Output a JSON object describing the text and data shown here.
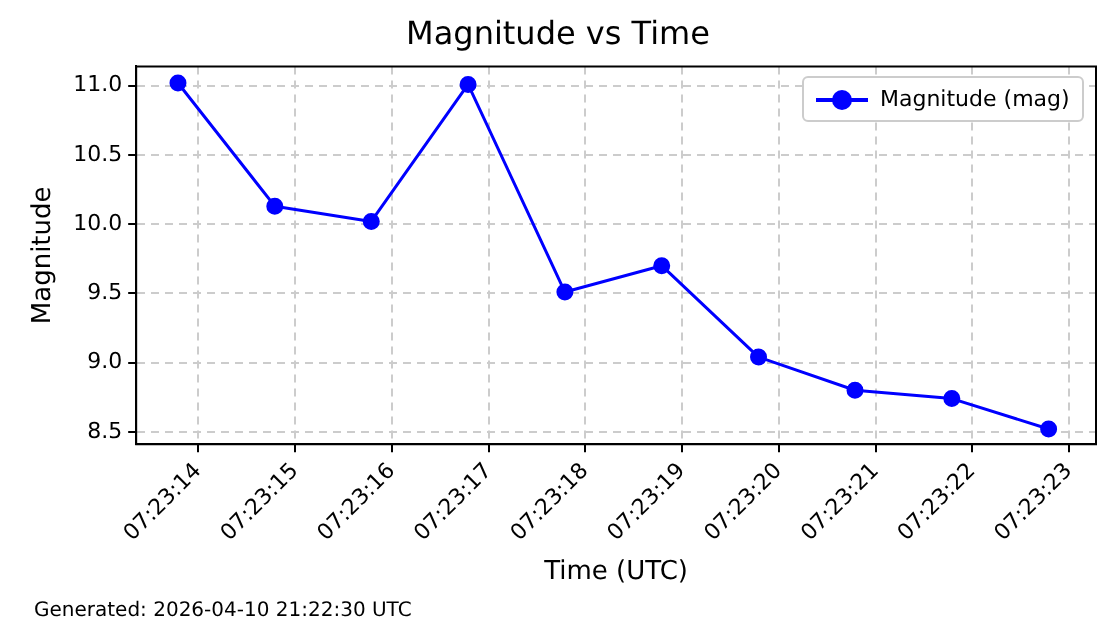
{
  "chart_data": {
    "type": "line",
    "title": "Magnitude vs Time",
    "xlabel": "Time (UTC)",
    "ylabel": "Magnitude",
    "x": [
      7.387164,
      7.387442,
      7.387719,
      7.387997,
      7.388275,
      7.388553,
      7.388831,
      7.389108,
      7.389386,
      7.389664
    ],
    "series": [
      {
        "name": "Magnitude (mag)",
        "color": "#0000ff",
        "values": [
          11.02,
          10.13,
          10.02,
          11.01,
          9.51,
          9.7,
          9.04,
          8.8,
          8.74,
          8.52
        ]
      }
    ],
    "xlim": [
      7.387044,
      7.3898
    ],
    "xticks": [
      {
        "value": 7.387222,
        "label": "07:23:14"
      },
      {
        "value": 7.3875,
        "label": "07:23:15"
      },
      {
        "value": 7.387778,
        "label": "07:23:16"
      },
      {
        "value": 7.388056,
        "label": "07:23:17"
      },
      {
        "value": 7.388333,
        "label": "07:23:18"
      },
      {
        "value": 7.388611,
        "label": "07:23:19"
      },
      {
        "value": 7.388889,
        "label": "07:23:20"
      },
      {
        "value": 7.389167,
        "label": "07:23:21"
      },
      {
        "value": 7.389444,
        "label": "07:23:22"
      },
      {
        "value": 7.389722,
        "label": "07:23:23"
      }
    ],
    "ylim": [
      8.41,
      11.14
    ],
    "yticks": [
      {
        "value": 8.5,
        "label": "8.5"
      },
      {
        "value": 9,
        "label": "9.0"
      },
      {
        "value": 9.5,
        "label": "9.5"
      },
      {
        "value": 10,
        "label": "10.0"
      },
      {
        "value": 10.5,
        "label": "10.5"
      },
      {
        "value": 11,
        "label": "11.0"
      }
    ],
    "grid": true,
    "legend": "top right",
    "marker": "circle",
    "line_style": "solid",
    "annotations": [
      "Generated: 2026-04-10 21:22:30 UTC"
    ]
  }
}
